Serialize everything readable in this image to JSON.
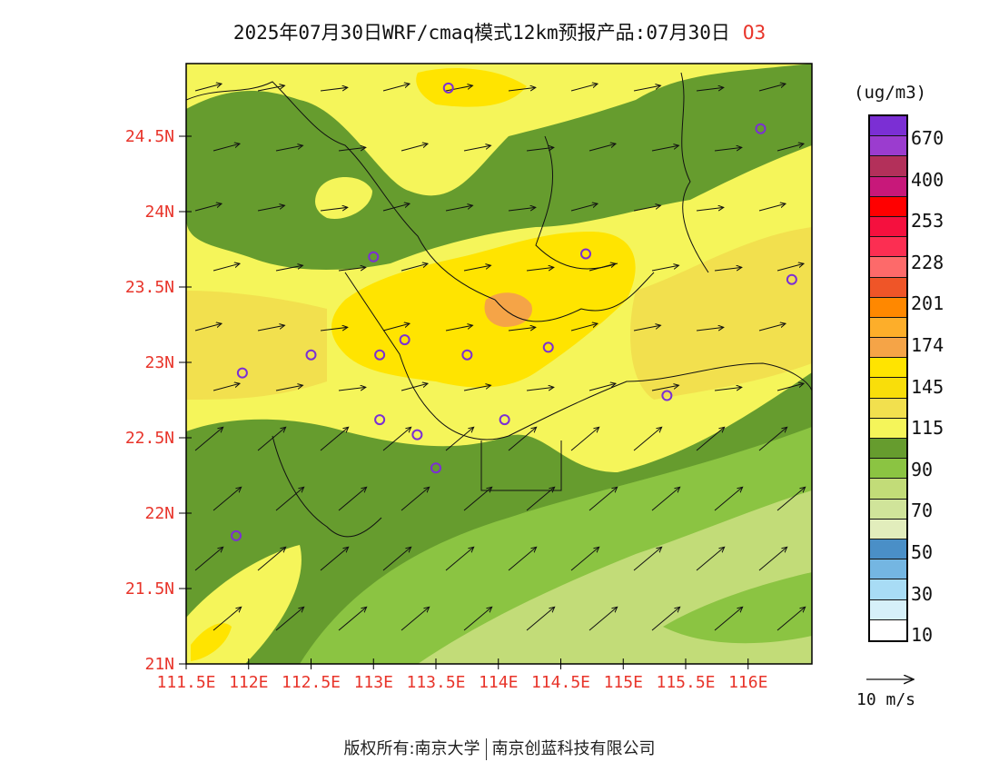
{
  "title": {
    "main": "2025年07月30日WRF/cmaq模式12km预报产品:07月30日",
    "variable": "O3"
  },
  "colorbar": {
    "unit": "(ug/m3)",
    "colors": [
      "#7b2fd4",
      "#9b3ccf",
      "#b3305a",
      "#c8187a",
      "#ff0000",
      "#f5103e",
      "#fc2e52",
      "#fd6a6a",
      "#ef5528",
      "#ff8800",
      "#fdae2a",
      "#f5a447",
      "#ffe400",
      "#f9de0a",
      "#f2e04e",
      "#f5f55a",
      "#669c2e",
      "#8bc442",
      "#c2dc78",
      "#d0e49a",
      "#e2edbc",
      "#4a8fc7",
      "#74b6e2",
      "#a8dcf5",
      "#d6f0f9",
      "#ffffff"
    ],
    "labels": [
      "670",
      "400",
      "253",
      "228",
      "201",
      "174",
      "145",
      "115",
      "90",
      "70",
      "50",
      "30",
      "10"
    ]
  },
  "reference_vector": {
    "label": "10 m/s"
  },
  "axes": {
    "lat_labels": [
      "24.5N",
      "24N",
      "23.5N",
      "23N",
      "22.5N",
      "22N",
      "21.5N",
      "21N"
    ],
    "lon_labels": [
      "111.5E",
      "112E",
      "112.5E",
      "113E",
      "113.5E",
      "114E",
      "114.5E",
      "115E",
      "115.5E",
      "116E"
    ]
  },
  "stations": [
    {
      "lon": 113.6,
      "lat": 24.82
    },
    {
      "lon": 116.1,
      "lat": 24.55
    },
    {
      "lon": 113.0,
      "lat": 23.7
    },
    {
      "lon": 114.7,
      "lat": 23.72
    },
    {
      "lon": 116.35,
      "lat": 23.55
    },
    {
      "lon": 112.5,
      "lat": 23.05
    },
    {
      "lon": 113.05,
      "lat": 23.05
    },
    {
      "lon": 113.25,
      "lat": 23.15
    },
    {
      "lon": 113.75,
      "lat": 23.05
    },
    {
      "lon": 114.4,
      "lat": 23.1
    },
    {
      "lon": 111.95,
      "lat": 22.93
    },
    {
      "lon": 115.35,
      "lat": 22.78
    },
    {
      "lon": 113.05,
      "lat": 22.62
    },
    {
      "lon": 113.35,
      "lat": 22.52
    },
    {
      "lon": 114.05,
      "lat": 22.62
    },
    {
      "lon": 113.5,
      "lat": 22.3
    },
    {
      "lon": 111.9,
      "lat": 21.85
    }
  ],
  "footer": {
    "left": "版权所有:南京大学",
    "right": "南京创蓝科技有限公司"
  }
}
